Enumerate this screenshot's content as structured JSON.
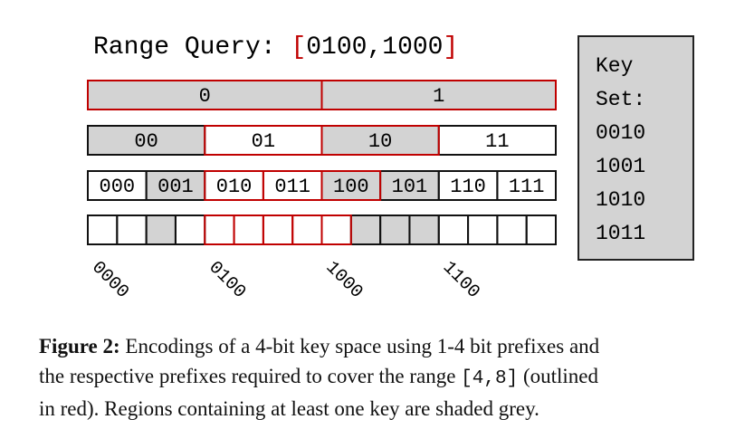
{
  "title": {
    "prefix": "Range Query: ",
    "open": "[",
    "range": "0100,1000",
    "close": "]"
  },
  "rows": [
    {
      "cells": [
        {
          "label": "0",
          "shaded": true,
          "outlined": true
        },
        {
          "label": "1",
          "shaded": true,
          "outlined": true
        }
      ]
    },
    {
      "cells": [
        {
          "label": "00",
          "shaded": true,
          "outlined": false
        },
        {
          "label": "01",
          "shaded": false,
          "outlined": true
        },
        {
          "label": "10",
          "shaded": true,
          "outlined": true
        },
        {
          "label": "11",
          "shaded": false,
          "outlined": false
        }
      ]
    },
    {
      "cells": [
        {
          "label": "000",
          "shaded": false,
          "outlined": false
        },
        {
          "label": "001",
          "shaded": true,
          "outlined": false
        },
        {
          "label": "010",
          "shaded": false,
          "outlined": true
        },
        {
          "label": "011",
          "shaded": false,
          "outlined": true
        },
        {
          "label": "100",
          "shaded": true,
          "outlined": true
        },
        {
          "label": "101",
          "shaded": true,
          "outlined": false
        },
        {
          "label": "110",
          "shaded": false,
          "outlined": false
        },
        {
          "label": "111",
          "shaded": false,
          "outlined": false
        }
      ]
    },
    {
      "cells": [
        {
          "shaded": false,
          "outlined": false
        },
        {
          "shaded": false,
          "outlined": false
        },
        {
          "shaded": true,
          "outlined": false
        },
        {
          "shaded": false,
          "outlined": false
        },
        {
          "shaded": false,
          "outlined": true
        },
        {
          "shaded": false,
          "outlined": true
        },
        {
          "shaded": false,
          "outlined": true
        },
        {
          "shaded": false,
          "outlined": true
        },
        {
          "shaded": false,
          "outlined": true
        },
        {
          "shaded": true,
          "outlined": false
        },
        {
          "shaded": true,
          "outlined": false
        },
        {
          "shaded": true,
          "outlined": false
        },
        {
          "shaded": false,
          "outlined": false
        },
        {
          "shaded": false,
          "outlined": false
        },
        {
          "shaded": false,
          "outlined": false
        },
        {
          "shaded": false,
          "outlined": false
        }
      ]
    }
  ],
  "axis_labels": [
    "0000",
    "0100",
    "1000",
    "1100"
  ],
  "key_set": {
    "title_1": "Key",
    "title_2": "Set:",
    "keys": [
      "0010",
      "1001",
      "1010",
      "1011"
    ]
  },
  "caption": {
    "label": "Figure 2:",
    "line_1": " Encodings of a 4-bit key space using 1-4 bit prefixes and",
    "line_2": "the respective prefixes required to cover the range ",
    "code": "[4,8]",
    "line_2_end": " (outlined",
    "line_3": "in red). Regions containing at least one key are shaded grey."
  }
}
